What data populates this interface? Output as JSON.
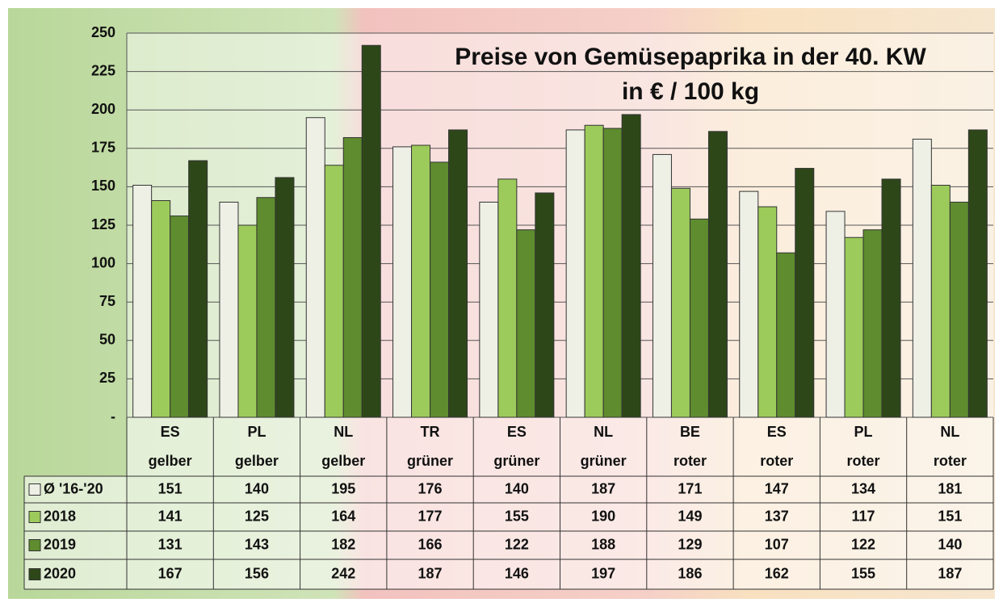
{
  "chart_data": {
    "type": "bar",
    "title": "Preise von Gemüsepaprika in der 40. KW",
    "subtitle": "in € / 100 kg",
    "categories": [
      [
        "ES",
        "gelber"
      ],
      [
        "PL",
        "gelber"
      ],
      [
        "NL",
        "gelber"
      ],
      [
        "TR",
        "grüner"
      ],
      [
        "ES",
        "grüner"
      ],
      [
        "NL",
        "grüner"
      ],
      [
        "BE",
        "roter"
      ],
      [
        "ES",
        "roter"
      ],
      [
        "PL",
        "roter"
      ],
      [
        "NL",
        "roter"
      ]
    ],
    "series": [
      {
        "name": "Ø '16-'20",
        "color": "#eef0e6",
        "values": [
          151,
          140,
          195,
          176,
          140,
          187,
          171,
          147,
          134,
          181
        ]
      },
      {
        "name": "2018",
        "color": "#9dcb5b",
        "values": [
          141,
          125,
          164,
          177,
          155,
          190,
          149,
          137,
          117,
          151
        ]
      },
      {
        "name": "2019",
        "color": "#5e8c2e",
        "values": [
          131,
          143,
          182,
          166,
          122,
          188,
          129,
          107,
          122,
          140
        ]
      },
      {
        "name": "2020",
        "color": "#2e4719",
        "values": [
          167,
          156,
          242,
          187,
          146,
          197,
          186,
          162,
          155,
          187
        ]
      }
    ],
    "ylim": [
      0,
      250
    ],
    "yticks": [
      {
        "value": 0,
        "label": "-"
      },
      25,
      50,
      75,
      100,
      125,
      150,
      175,
      200,
      225,
      250
    ],
    "grid": true
  }
}
